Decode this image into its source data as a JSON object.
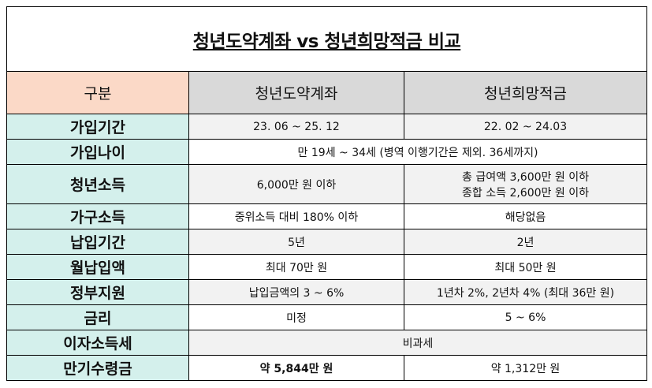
{
  "title": "청년도약계좌 vs 청년희망적금 비교",
  "headers": [
    "구분",
    "청년도약계좌",
    "청년희망적금"
  ],
  "rows": {
    "r0": {
      "label": "가입기간",
      "a": "23. 06 ~ 25. 12",
      "b": "22. 02 ~ 24.03"
    },
    "r1": {
      "label": "가입나이",
      "merged": "만 19세 ~ 34세 (병역 이행기간은 제외. 36세까지)"
    },
    "r2": {
      "label": "청년소득",
      "a": "6,000만 원 이하",
      "b1": "총 급여액 3,600만 원 이하",
      "b2": "종합 소득 2,600만 원 이하"
    },
    "r3": {
      "label": "가구소득",
      "a": "중위소득 대비 180% 이하",
      "b": "해당없음"
    },
    "r4": {
      "label": "납입기간",
      "a": "5년",
      "b": "2년"
    },
    "r5": {
      "label": "월납입액",
      "a": "최대 70만 원",
      "b": "최대 50만 원"
    },
    "r6": {
      "label": "정부지원",
      "a": "납입금액의 3 ~ 6%",
      "b": "1년차 2%, 2년차 4% (최대 36만 원)"
    },
    "r7": {
      "label": "금리",
      "a": "미정",
      "b": "5 ~ 6%"
    },
    "r8": {
      "label": "이자소득세",
      "merged": "비과세"
    },
    "r9": {
      "label": "만기수령금",
      "a": "약 5,844만 원",
      "b": "약 1,312만 원"
    }
  }
}
